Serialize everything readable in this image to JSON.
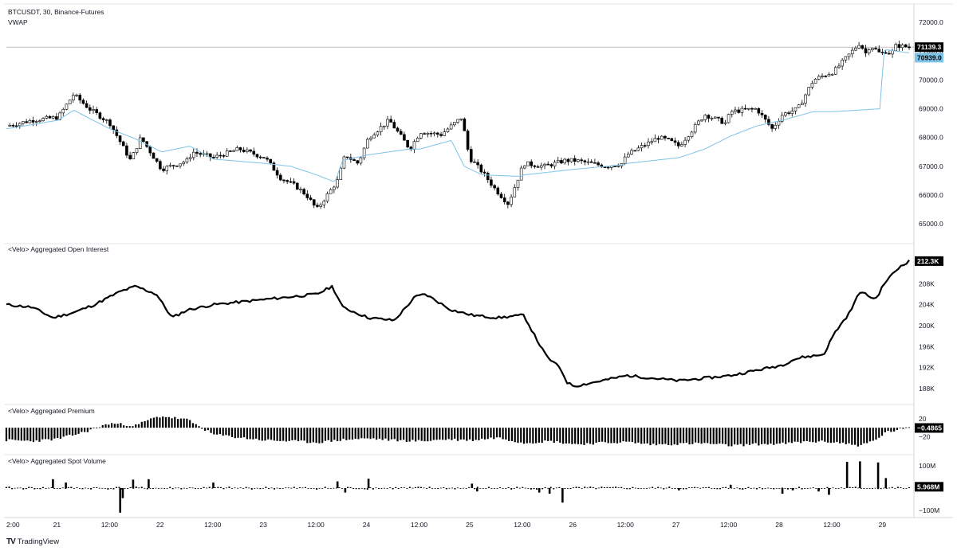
{
  "header": {
    "symbol_line": "BTCUSDT, 30, Binance-Futures",
    "indicator": "VWAP"
  },
  "footer": {
    "brand": "TradingView",
    "brand_icon": "tradingview-logo-icon"
  },
  "colors": {
    "up": "#ffffff",
    "down": "#000000",
    "vwap": "#7ec3e8",
    "price_line": "#9e9e9e",
    "vwap_tag": "#7ec3e8"
  },
  "chart_data": [
    {
      "pane": "price",
      "type": "line",
      "title": "BTCUSDT, 30, Binance-Futures",
      "yticks": [
        "72000.0",
        "71000.0",
        "70000.0",
        "69000.0",
        "68000.0",
        "67000.0",
        "66000.0",
        "65000.0"
      ],
      "ylim": [
        64700,
        72500
      ],
      "last_price": "71139.3",
      "vwap_value": "70939.0",
      "series": [
        {
          "name": "BTCUSDT",
          "x": [
            0,
            0.5,
            1,
            1.3,
            1.6,
            2,
            2.4,
            2.6,
            3,
            3.5,
            3.6,
            4,
            4.5,
            5,
            5.3,
            5.6,
            5.8,
            6,
            6.4,
            6.55,
            6.7,
            6.8,
            7,
            7.4,
            7.8,
            8,
            8.4,
            8.8,
            8.95,
            9.2,
            9.45,
            9.7,
            10,
            10.4,
            10.8,
            11,
            11.3,
            11.6,
            11.9,
            12,
            12.3,
            12.6,
            12.8,
            13,
            13.5,
            13.9,
            14,
            14.5,
            14.8,
            15,
            15.3,
            15.6,
            16,
            16.5,
            16.6,
            16.7,
            16.9,
            17,
            17.1,
            17.2,
            17.45
          ],
          "y": [
            68400,
            68600,
            68700,
            69500,
            69000,
            68500,
            67200,
            68000,
            66900,
            67200,
            67500,
            67300,
            67600,
            67300,
            66600,
            66300,
            66000,
            65500,
            66500,
            67400,
            67200,
            67100,
            68000,
            68600,
            67600,
            68200,
            68100,
            68700,
            67300,
            66800,
            66200,
            65700,
            67100,
            67000,
            67200,
            67200,
            67100,
            67000,
            67100,
            67400,
            67700,
            68000,
            67900,
            67700,
            68800,
            68500,
            68900,
            69000,
            68300,
            68800,
            69000,
            70000,
            70300,
            71300,
            70900,
            71200,
            70900,
            71000,
            70900,
            71200,
            71139.3
          ]
        },
        {
          "name": "VWAP",
          "x": [
            0,
            1,
            1.3,
            2,
            2.5,
            3,
            3.55,
            4,
            5,
            5.5,
            6,
            6.35,
            6.5,
            7,
            7.8,
            8,
            8.6,
            8.85,
            9.2,
            9.95,
            10,
            11,
            11.9,
            12,
            13,
            13.5,
            14,
            14.5,
            15,
            15.6,
            16,
            16.9,
            16.95,
            17,
            17.45
          ],
          "y": [
            68300,
            68600,
            68950,
            68300,
            67950,
            67500,
            67700,
            67250,
            67100,
            67000,
            66700,
            66450,
            67200,
            67400,
            67600,
            67600,
            67900,
            67000,
            66700,
            66650,
            66700,
            66900,
            67050,
            67100,
            67300,
            67600,
            68050,
            68400,
            68600,
            68900,
            68900,
            69000,
            71000,
            71050,
            70939
          ]
        }
      ]
    },
    {
      "pane": "open_interest",
      "type": "line",
      "title": "<Velo> Aggregated Open Interest",
      "yticks": [
        "208K",
        "204K",
        "200K",
        "196K",
        "192K",
        "188K"
      ],
      "ylim": [
        186500,
        213500
      ],
      "last_value": "212.3K",
      "series": [
        {
          "name": "<Velo> Aggregated Open Interest",
          "x": [
            0,
            0.5,
            0.9,
            1.3,
            1.7,
            2.2,
            2.5,
            2.9,
            3.2,
            3.5,
            4,
            4.5,
            5,
            5.5,
            6,
            6.3,
            6.5,
            7,
            7.5,
            7.9,
            8.1,
            8.6,
            9,
            9.5,
            10,
            10.3,
            10.45,
            10.7,
            10.85,
            11,
            11.5,
            12,
            12.5,
            13,
            13.5,
            14,
            14.5,
            15,
            15.2,
            15.4,
            15.8,
            16,
            16.3,
            16.5,
            16.8,
            17,
            17.3,
            17.45
          ],
          "y": [
            204000,
            203500,
            201500,
            202500,
            204000,
            206500,
            207500,
            206000,
            201500,
            203000,
            204000,
            204500,
            205000,
            205500,
            206000,
            207500,
            203500,
            201500,
            201000,
            205500,
            206000,
            203000,
            202000,
            201500,
            202000,
            196500,
            194000,
            192000,
            189000,
            188500,
            189500,
            190500,
            190000,
            189500,
            190000,
            190500,
            191500,
            192500,
            193500,
            194000,
            194500,
            198500,
            202500,
            206500,
            205000,
            208500,
            211500,
            212300
          ]
        }
      ]
    },
    {
      "pane": "premium",
      "type": "bar",
      "title": "<Velo> Aggregated Premium",
      "yticks": [
        "20",
        "−20"
      ],
      "ylim": [
        -55,
        45
      ],
      "last_value": "−0.4865",
      "series": [
        {
          "name": "<Velo> Aggregated Premium",
          "x": [
            0,
            0.5,
            1,
            1.5,
            2,
            2.5,
            2.8,
            3,
            3.5,
            4,
            4.5,
            5,
            5.5,
            6,
            6.5,
            7,
            7.5,
            8,
            8.5,
            9,
            9.5,
            10,
            10.5,
            11,
            11.5,
            12,
            12.5,
            13,
            13.5,
            14,
            14.5,
            15,
            15.5,
            16,
            16.5,
            16.8,
            17,
            17.45
          ],
          "y": [
            -28,
            -30,
            -25,
            -10,
            10,
            5,
            20,
            26,
            18,
            -15,
            -22,
            -28,
            -30,
            -33,
            -27,
            -24,
            -28,
            -30,
            -26,
            -28,
            -22,
            -34,
            -30,
            -37,
            -34,
            -32,
            -38,
            -36,
            -35,
            -40,
            -37,
            -36,
            -31,
            -32,
            -40,
            -28,
            -10,
            -0.4865
          ]
        }
      ]
    },
    {
      "pane": "spot_volume",
      "type": "bar",
      "title": "<Velo> Aggregated Spot Volume",
      "yticks": [
        "100M",
        "−100M"
      ],
      "ylim": [
        -125,
        125
      ],
      "last_value": "5.968M",
      "series": [
        {
          "name": "<Velo> Aggregated Spot Volume",
          "x": [
            0.9,
            1.15,
            2.2,
            2.25,
            2.45,
            2.75,
            4,
            6.4,
            6.55,
            7,
            9,
            9.1,
            10.3,
            10.5,
            10.75,
            13,
            14,
            15,
            15.2,
            15.7,
            15.9,
            16.25,
            16.5,
            16.85,
            17
          ],
          "y": [
            40,
            25,
            -110,
            -45,
            38,
            40,
            25,
            30,
            -20,
            42,
            20,
            -15,
            -20,
            -25,
            -65,
            -10,
            15,
            -25,
            -10,
            -15,
            -30,
            118,
            120,
            115,
            45
          ]
        }
      ]
    }
  ],
  "x_axis": {
    "labels": [
      "2:00",
      "21",
      "12:00",
      "22",
      "12:00",
      "23",
      "12:00",
      "24",
      "12:00",
      "25",
      "12:00",
      "26",
      "12:00",
      "27",
      "12:00",
      "28",
      "12:00",
      "29"
    ],
    "label_positions": [
      -0.02,
      0.47,
      0.98,
      1.47,
      1.98,
      2.47,
      2.98,
      3.47,
      3.98,
      4.47,
      4.98,
      5.47,
      5.98,
      6.47,
      6.98,
      7.47,
      7.98,
      8.47
    ]
  }
}
